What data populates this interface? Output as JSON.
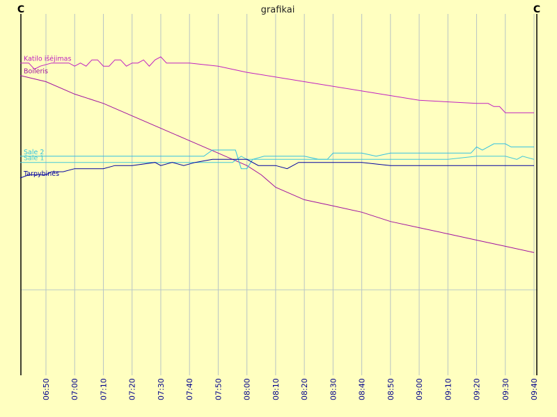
{
  "chart_data": {
    "type": "line",
    "title": "grafikai",
    "y_unit_left": "C",
    "y_unit_right": "C",
    "x_ticks": [
      "06:50",
      "07:00",
      "07:10",
      "07:20",
      "07:30",
      "07:40",
      "07:50",
      "08:00",
      "08:10",
      "08:20",
      "08:30",
      "08:40",
      "08:50",
      "09:00",
      "09:10",
      "09:20",
      "09:30",
      "09:40"
    ],
    "grid": true,
    "legend": "inline-left",
    "series": [
      {
        "name": "Katilo išėjimas",
        "color": "#c020c0",
        "points": [
          [
            "06:41",
            73
          ],
          [
            "06:44",
            73
          ],
          [
            "06:46",
            71
          ],
          [
            "06:48",
            72
          ],
          [
            "06:52",
            73
          ],
          [
            "06:56",
            73
          ],
          [
            "06:58",
            73
          ],
          [
            "07:00",
            72
          ],
          [
            "07:02",
            73
          ],
          [
            "07:04",
            72
          ],
          [
            "07:06",
            74
          ],
          [
            "07:08",
            74
          ],
          [
            "07:10",
            72
          ],
          [
            "07:12",
            72
          ],
          [
            "07:14",
            74
          ],
          [
            "07:16",
            74
          ],
          [
            "07:18",
            72
          ],
          [
            "07:20",
            73
          ],
          [
            "07:22",
            73
          ],
          [
            "07:24",
            74
          ],
          [
            "07:26",
            72
          ],
          [
            "07:28",
            74
          ],
          [
            "07:30",
            75
          ],
          [
            "07:32",
            73
          ],
          [
            "07:40",
            73
          ],
          [
            "07:50",
            72
          ],
          [
            "08:00",
            70
          ],
          [
            "08:20",
            67
          ],
          [
            "08:40",
            64
          ],
          [
            "09:00",
            61
          ],
          [
            "09:20",
            60
          ],
          [
            "09:24",
            60
          ],
          [
            "09:26",
            59
          ],
          [
            "09:28",
            59
          ],
          [
            "09:30",
            57
          ],
          [
            "09:40",
            57
          ]
        ]
      },
      {
        "name": "Boileris",
        "color": "#a010a0",
        "points": [
          [
            "06:41",
            69
          ],
          [
            "06:50",
            67
          ],
          [
            "07:00",
            63
          ],
          [
            "07:10",
            60
          ],
          [
            "07:20",
            56
          ],
          [
            "07:30",
            52
          ],
          [
            "07:40",
            48
          ],
          [
            "07:50",
            44
          ],
          [
            "07:55",
            42
          ],
          [
            "08:00",
            40
          ],
          [
            "08:05",
            37
          ],
          [
            "08:10",
            33
          ],
          [
            "08:20",
            29
          ],
          [
            "08:30",
            27
          ],
          [
            "08:40",
            25
          ],
          [
            "08:50",
            22
          ],
          [
            "09:00",
            20
          ],
          [
            "09:10",
            18
          ],
          [
            "09:20",
            16
          ],
          [
            "09:30",
            14
          ],
          [
            "09:40",
            12
          ]
        ]
      },
      {
        "name": "Sale 2",
        "color": "#30c0e0",
        "points": [
          [
            "06:41",
            43
          ],
          [
            "07:45",
            43
          ],
          [
            "07:48",
            45
          ],
          [
            "07:54",
            45
          ],
          [
            "07:56",
            45
          ],
          [
            "07:58",
            39
          ],
          [
            "08:00",
            39
          ],
          [
            "08:02",
            42
          ],
          [
            "08:06",
            43
          ],
          [
            "08:18",
            43
          ],
          [
            "08:20",
            43
          ],
          [
            "08:25",
            42
          ],
          [
            "08:28",
            42
          ],
          [
            "08:30",
            44
          ],
          [
            "08:32",
            44
          ],
          [
            "08:34",
            44
          ],
          [
            "08:38",
            44
          ],
          [
            "08:40",
            44
          ],
          [
            "08:45",
            43
          ],
          [
            "08:50",
            44
          ],
          [
            "09:00",
            44
          ],
          [
            "09:10",
            44
          ],
          [
            "09:18",
            44
          ],
          [
            "09:20",
            46
          ],
          [
            "09:22",
            45
          ],
          [
            "09:24",
            46
          ],
          [
            "09:26",
            47
          ],
          [
            "09:30",
            47
          ],
          [
            "09:32",
            46
          ],
          [
            "09:36",
            46
          ],
          [
            "09:40",
            46
          ]
        ]
      },
      {
        "name": "Sale 1",
        "color": "#40c8d8",
        "points": [
          [
            "06:41",
            41
          ],
          [
            "07:55",
            41
          ],
          [
            "07:58",
            43
          ],
          [
            "08:00",
            42
          ],
          [
            "08:02",
            42
          ],
          [
            "08:10",
            42
          ],
          [
            "08:20",
            42
          ],
          [
            "08:30",
            42
          ],
          [
            "08:40",
            42
          ],
          [
            "08:50",
            42
          ],
          [
            "09:00",
            42
          ],
          [
            "09:10",
            42
          ],
          [
            "09:20",
            43
          ],
          [
            "09:30",
            43
          ],
          [
            "09:34",
            42
          ],
          [
            "09:36",
            43
          ],
          [
            "09:40",
            42
          ]
        ]
      },
      {
        "name": "Tarpybinės",
        "color": "#0000a0",
        "points": [
          [
            "06:41",
            36
          ],
          [
            "06:44",
            37
          ],
          [
            "06:48",
            37
          ],
          [
            "06:50",
            37
          ],
          [
            "06:52",
            38
          ],
          [
            "06:56",
            38
          ],
          [
            "07:00",
            39
          ],
          [
            "07:06",
            39
          ],
          [
            "07:10",
            39
          ],
          [
            "07:14",
            40
          ],
          [
            "07:20",
            40
          ],
          [
            "07:28",
            41
          ],
          [
            "07:30",
            40
          ],
          [
            "07:34",
            41
          ],
          [
            "07:38",
            40
          ],
          [
            "07:42",
            41
          ],
          [
            "07:48",
            42
          ],
          [
            "07:56",
            42
          ],
          [
            "08:00",
            42
          ],
          [
            "08:04",
            40
          ],
          [
            "08:10",
            40
          ],
          [
            "08:14",
            39
          ],
          [
            "08:18",
            41
          ],
          [
            "08:28",
            41
          ],
          [
            "08:30",
            41
          ],
          [
            "08:40",
            41
          ],
          [
            "08:50",
            40
          ],
          [
            "09:00",
            40
          ],
          [
            "09:10",
            40
          ],
          [
            "09:20",
            40
          ],
          [
            "09:30",
            40
          ],
          [
            "09:40",
            40
          ]
        ]
      }
    ]
  }
}
